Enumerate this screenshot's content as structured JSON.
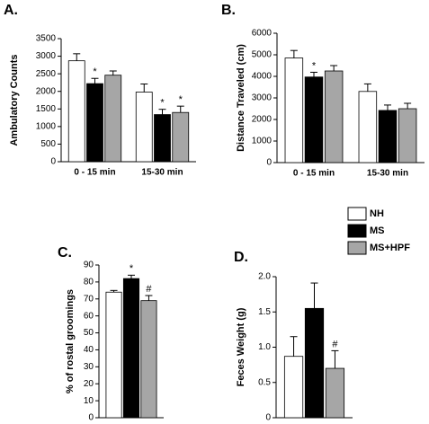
{
  "chart_data": [
    {
      "type": "bar",
      "title": "A.",
      "y_label": "Ambulatory Counts",
      "categories": [
        "0 - 15 min",
        "15-30 min"
      ],
      "series": [
        {
          "name": "NH",
          "color": "#ffffff",
          "values": [
            2870,
            1980
          ],
          "errors": [
            200,
            230
          ],
          "annotations": [
            null,
            null
          ]
        },
        {
          "name": "MS",
          "color": "#000000",
          "values": [
            2220,
            1340
          ],
          "errors": [
            150,
            150
          ],
          "annotations": [
            "*",
            "*"
          ]
        },
        {
          "name": "MS+HPF",
          "color": "#a6a6a6",
          "values": [
            2460,
            1400
          ],
          "errors": [
            120,
            180
          ],
          "annotations": [
            null,
            "*"
          ]
        }
      ],
      "ylim": [
        0,
        3500
      ],
      "yticks": [
        0,
        500,
        1000,
        1500,
        2000,
        2500,
        3000,
        3500
      ]
    },
    {
      "type": "bar",
      "title": "B.",
      "y_label": "Distance Traveled (cm)",
      "categories": [
        "0 - 15 min",
        "15-30 min"
      ],
      "series": [
        {
          "name": "NH",
          "color": "#ffffff",
          "values": [
            4850,
            3300
          ],
          "errors": [
            350,
            350
          ],
          "annotations": [
            null,
            null
          ]
        },
        {
          "name": "MS",
          "color": "#000000",
          "values": [
            3970,
            2420
          ],
          "errors": [
            220,
            250
          ],
          "annotations": [
            "*",
            null
          ]
        },
        {
          "name": "MS+HPF",
          "color": "#a6a6a6",
          "values": [
            4250,
            2500
          ],
          "errors": [
            250,
            250
          ],
          "annotations": [
            null,
            null
          ]
        }
      ],
      "ylim": [
        0,
        6000
      ],
      "yticks": [
        0,
        1000,
        2000,
        3000,
        4000,
        5000,
        6000
      ]
    },
    {
      "type": "bar",
      "title": "C.",
      "y_label": "% of rostal groomings",
      "categories": [
        null
      ],
      "series": [
        {
          "name": "NH",
          "color": "#ffffff",
          "values": [
            74
          ],
          "errors": [
            1
          ],
          "annotations": [
            null
          ]
        },
        {
          "name": "MS",
          "color": "#000000",
          "values": [
            82
          ],
          "errors": [
            2
          ],
          "annotations": [
            "*"
          ]
        },
        {
          "name": "MS+HPF",
          "color": "#a6a6a6",
          "values": [
            69
          ],
          "errors": [
            3
          ],
          "annotations": [
            "#"
          ]
        }
      ],
      "ylim": [
        0,
        90
      ],
      "yticks": [
        0,
        10,
        20,
        30,
        40,
        50,
        60,
        70,
        80,
        90
      ]
    },
    {
      "type": "bar",
      "title": "D.",
      "y_label": "Feces Weight (g)",
      "categories": [
        null
      ],
      "series": [
        {
          "name": "NH",
          "color": "#ffffff",
          "values": [
            0.87
          ],
          "errors": [
            0.28
          ],
          "annotations": [
            null
          ]
        },
        {
          "name": "MS",
          "color": "#000000",
          "values": [
            1.55
          ],
          "errors": [
            0.36
          ],
          "annotations": [
            null
          ]
        },
        {
          "name": "MS+HPF",
          "color": "#a6a6a6",
          "values": [
            0.7
          ],
          "errors": [
            0.25
          ],
          "annotations": [
            "#"
          ]
        }
      ],
      "ylim": [
        0,
        2.0
      ],
      "yticks": [
        0,
        0.5,
        {
          "value": 1.0,
          "label": "1.0"
        },
        1.5,
        {
          "value": 2.0,
          "label": "2.0"
        }
      ]
    }
  ]
}
